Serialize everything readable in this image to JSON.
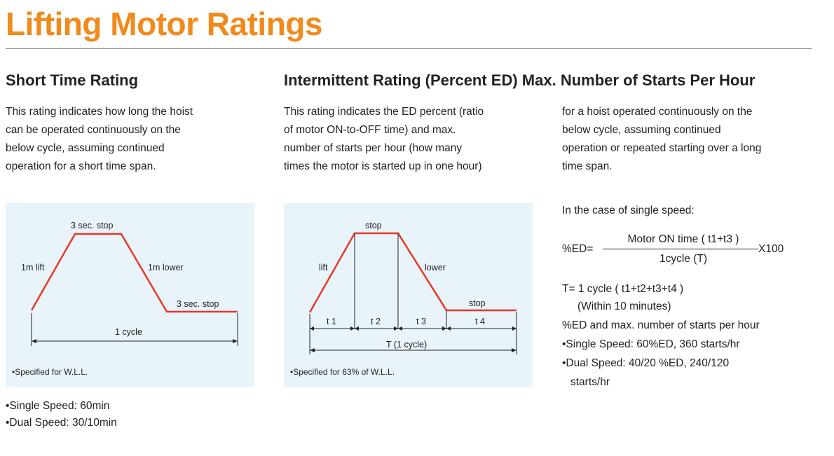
{
  "page": {
    "title": "Lifting Motor Ratings"
  },
  "short_time": {
    "heading": "Short Time Rating",
    "paragraph": [
      "This rating indicates how long the hoist",
      "can be operated continuously on the",
      "below cycle, assuming continued",
      "operation for a short time span."
    ],
    "diagram": {
      "label_top": "3 sec. stop",
      "label_lift": "1m lift",
      "label_lower": "1m lower",
      "label_stop": "3 sec. stop",
      "label_cycle": "1 cycle",
      "note": "•Specified for W.L.L.",
      "line_color": "#e53a26"
    },
    "bullets": [
      "•Single Speed: 60min",
      "•Dual Speed: 30/10min"
    ]
  },
  "intermittent": {
    "heading": "Intermittent Rating (Percent ED) Max. Number of Starts Per Hour",
    "paragraph_left": [
      "This rating indicates the ED percent (ratio",
      "of motor ON-to-OFF time) and max.",
      "number of starts per hour (how many",
      "times the motor is started up in one hour)"
    ],
    "paragraph_right": [
      "for a hoist operated continuously on the",
      "below cycle, assuming continued",
      "operation or repeated starting over a long",
      "time span."
    ],
    "diagram": {
      "label_top": "stop",
      "label_lift": "lift",
      "label_lower": "lower",
      "label_stop": "stop",
      "t1": "t 1",
      "t2": "t 2",
      "t3": "t 3",
      "t4": "t 4",
      "label_cycle": "T (1 cycle)",
      "note": "•Specified for 63% of W.L.L."
    },
    "formula": {
      "intro": "In the case of single speed:",
      "lhs": "%ED=",
      "numerator": "Motor ON time ( t1+t3 )",
      "denominator": "1cycle (T)",
      "multiplier": "X100",
      "t_def": "T= 1 cycle ( t1+t2+t3+t4 )",
      "t_note": "(Within 10 minutes)"
    },
    "summary_title": "%ED and max. number of starts per hour",
    "summary": [
      "•Single Speed: 60%ED, 360 starts/hr",
      "•Dual Speed: 40/20 %ED, 240/120",
      "starts/hr"
    ]
  }
}
